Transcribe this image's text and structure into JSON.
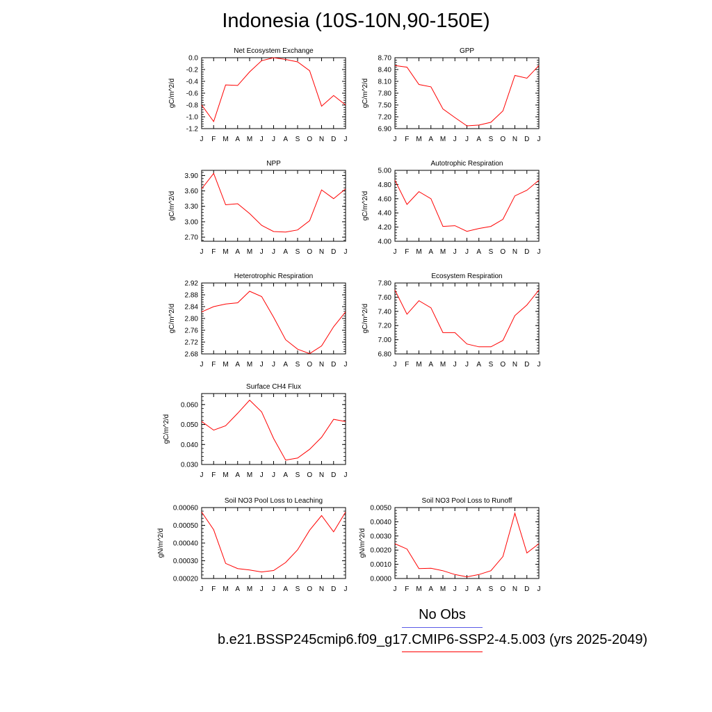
{
  "title": "Indonesia (10S-10N,90-150E)",
  "legend": {
    "obs_label": "No Obs",
    "obs_color": "#5a5ae6",
    "model_label": "b.e21.BSSP245cmip6.f09_g17.CMIP6-SSP2-4.5.003 (yrs 2025-2049)",
    "model_color": "#ff0000"
  },
  "month_labels": [
    "J",
    "F",
    "M",
    "A",
    "M",
    "J",
    "J",
    "A",
    "S",
    "O",
    "N",
    "D",
    "J"
  ],
  "chart_data": [
    {
      "type": "line",
      "title": "Net Ecosystem Exchange",
      "ylabel": "gC/m^2/d",
      "ylim": [
        -1.2,
        0.0
      ],
      "yticks": [
        "0.0",
        "-0.2",
        "-0.4",
        "-0.6",
        "-0.8",
        "-1.0",
        "-1.2"
      ],
      "ytick_values": [
        0.0,
        -0.2,
        -0.4,
        -0.6,
        -0.8,
        -1.0,
        -1.2
      ],
      "values": [
        -0.8,
        -1.08,
        -0.46,
        -0.47,
        -0.24,
        -0.05,
        0.0,
        -0.03,
        -0.07,
        -0.22,
        -0.82,
        -0.64,
        -0.8
      ]
    },
    {
      "type": "line",
      "title": "GPP",
      "ylabel": "gC/m^2/d",
      "ylim": [
        6.9,
        8.7
      ],
      "yticks": [
        "8.70",
        "8.40",
        "8.10",
        "7.80",
        "7.50",
        "7.20",
        "6.90"
      ],
      "ytick_values": [
        8.7,
        8.4,
        8.1,
        7.8,
        7.5,
        7.2,
        6.9
      ],
      "values": [
        8.5,
        8.46,
        8.02,
        7.96,
        7.4,
        7.18,
        6.97,
        6.99,
        7.06,
        7.35,
        8.25,
        8.18,
        8.5
      ]
    },
    {
      "type": "line",
      "title": "NPP",
      "ylabel": "gC/m^2/d",
      "ylim": [
        2.62,
        4.0
      ],
      "yticks": [
        "3.90",
        "3.60",
        "3.30",
        "3.00",
        "2.70"
      ],
      "ytick_values": [
        3.9,
        3.6,
        3.3,
        3.0,
        2.7
      ],
      "values": [
        3.64,
        3.94,
        3.33,
        3.35,
        3.16,
        2.93,
        2.81,
        2.8,
        2.84,
        3.02,
        3.62,
        3.45,
        3.64
      ]
    },
    {
      "type": "line",
      "title": "Autotrophic Respiration",
      "ylabel": "gC/m^2/d",
      "ylim": [
        4.0,
        5.0
      ],
      "yticks": [
        "5.00",
        "4.80",
        "4.60",
        "4.40",
        "4.20",
        "4.00"
      ],
      "ytick_values": [
        5.0,
        4.8,
        4.6,
        4.4,
        4.2,
        4.0
      ],
      "values": [
        4.86,
        4.52,
        4.7,
        4.6,
        4.21,
        4.22,
        4.14,
        4.18,
        4.21,
        4.31,
        4.64,
        4.72,
        4.86
      ]
    },
    {
      "type": "line",
      "title": "Heterotrophic Respiration",
      "ylabel": "gC/m^2/d",
      "ylim": [
        2.68,
        2.92
      ],
      "yticks": [
        "2.92",
        "2.88",
        "2.84",
        "2.80",
        "2.76",
        "2.72",
        "2.68"
      ],
      "ytick_values": [
        2.92,
        2.88,
        2.84,
        2.8,
        2.76,
        2.72,
        2.68
      ],
      "values": [
        2.822,
        2.84,
        2.849,
        2.853,
        2.892,
        2.874,
        2.804,
        2.728,
        2.696,
        2.681,
        2.707,
        2.772,
        2.822
      ]
    },
    {
      "type": "line",
      "title": "Ecosystem Respiration",
      "ylabel": "gC/m^2/d",
      "ylim": [
        6.8,
        7.8
      ],
      "yticks": [
        "7.80",
        "7.60",
        "7.40",
        "7.20",
        "7.00",
        "6.80"
      ],
      "ytick_values": [
        7.8,
        7.6,
        7.4,
        7.2,
        7.0,
        6.8
      ],
      "values": [
        7.7,
        7.36,
        7.55,
        7.45,
        7.1,
        7.1,
        6.94,
        6.9,
        6.9,
        6.99,
        7.34,
        7.49,
        7.7
      ]
    },
    {
      "type": "line",
      "title": "Surface CH4 Flux",
      "ylabel": "gC/m^2/d",
      "ylim": [
        0.03,
        0.0655
      ],
      "yticks": [
        "0.060",
        "0.050",
        "0.040",
        "0.030"
      ],
      "ytick_values": [
        0.06,
        0.05,
        0.04,
        0.03
      ],
      "values": [
        0.0515,
        0.0472,
        0.0494,
        0.0556,
        0.0622,
        0.0563,
        0.043,
        0.0322,
        0.0332,
        0.0376,
        0.0436,
        0.0526,
        0.0515
      ]
    },
    null,
    {
      "type": "line",
      "title": "Soil NO3 Pool Loss to Leaching",
      "ylabel": "gN/m^2/d",
      "ylim": [
        0.0002,
        0.0006
      ],
      "yticks": [
        "0.00060",
        "0.00050",
        "0.00040",
        "0.00030",
        "0.00020"
      ],
      "ytick_values": [
        0.0006,
        0.0005,
        0.0004,
        0.0003,
        0.0002
      ],
      "values": [
        0.000575,
        0.000475,
        0.000285,
        0.000256,
        0.000248,
        0.000237,
        0.000245,
        0.00029,
        0.000362,
        0.000472,
        0.000555,
        0.000463,
        0.000575
      ]
    },
    {
      "type": "line",
      "title": "Soil NO3 Pool Loss to Runoff",
      "ylabel": "gN/m^2/d",
      "ylim": [
        0.0,
        0.005
      ],
      "yticks": [
        "0.0050",
        "0.0040",
        "0.0030",
        "0.0020",
        "0.0010",
        "0.0000"
      ],
      "ytick_values": [
        0.005,
        0.004,
        0.003,
        0.002,
        0.001,
        0.0
      ],
      "values": [
        0.00245,
        0.00208,
        0.0007,
        0.00072,
        0.00055,
        0.00028,
        0.00012,
        0.00028,
        0.00055,
        0.00155,
        0.0046,
        0.0018,
        0.00245
      ]
    }
  ]
}
